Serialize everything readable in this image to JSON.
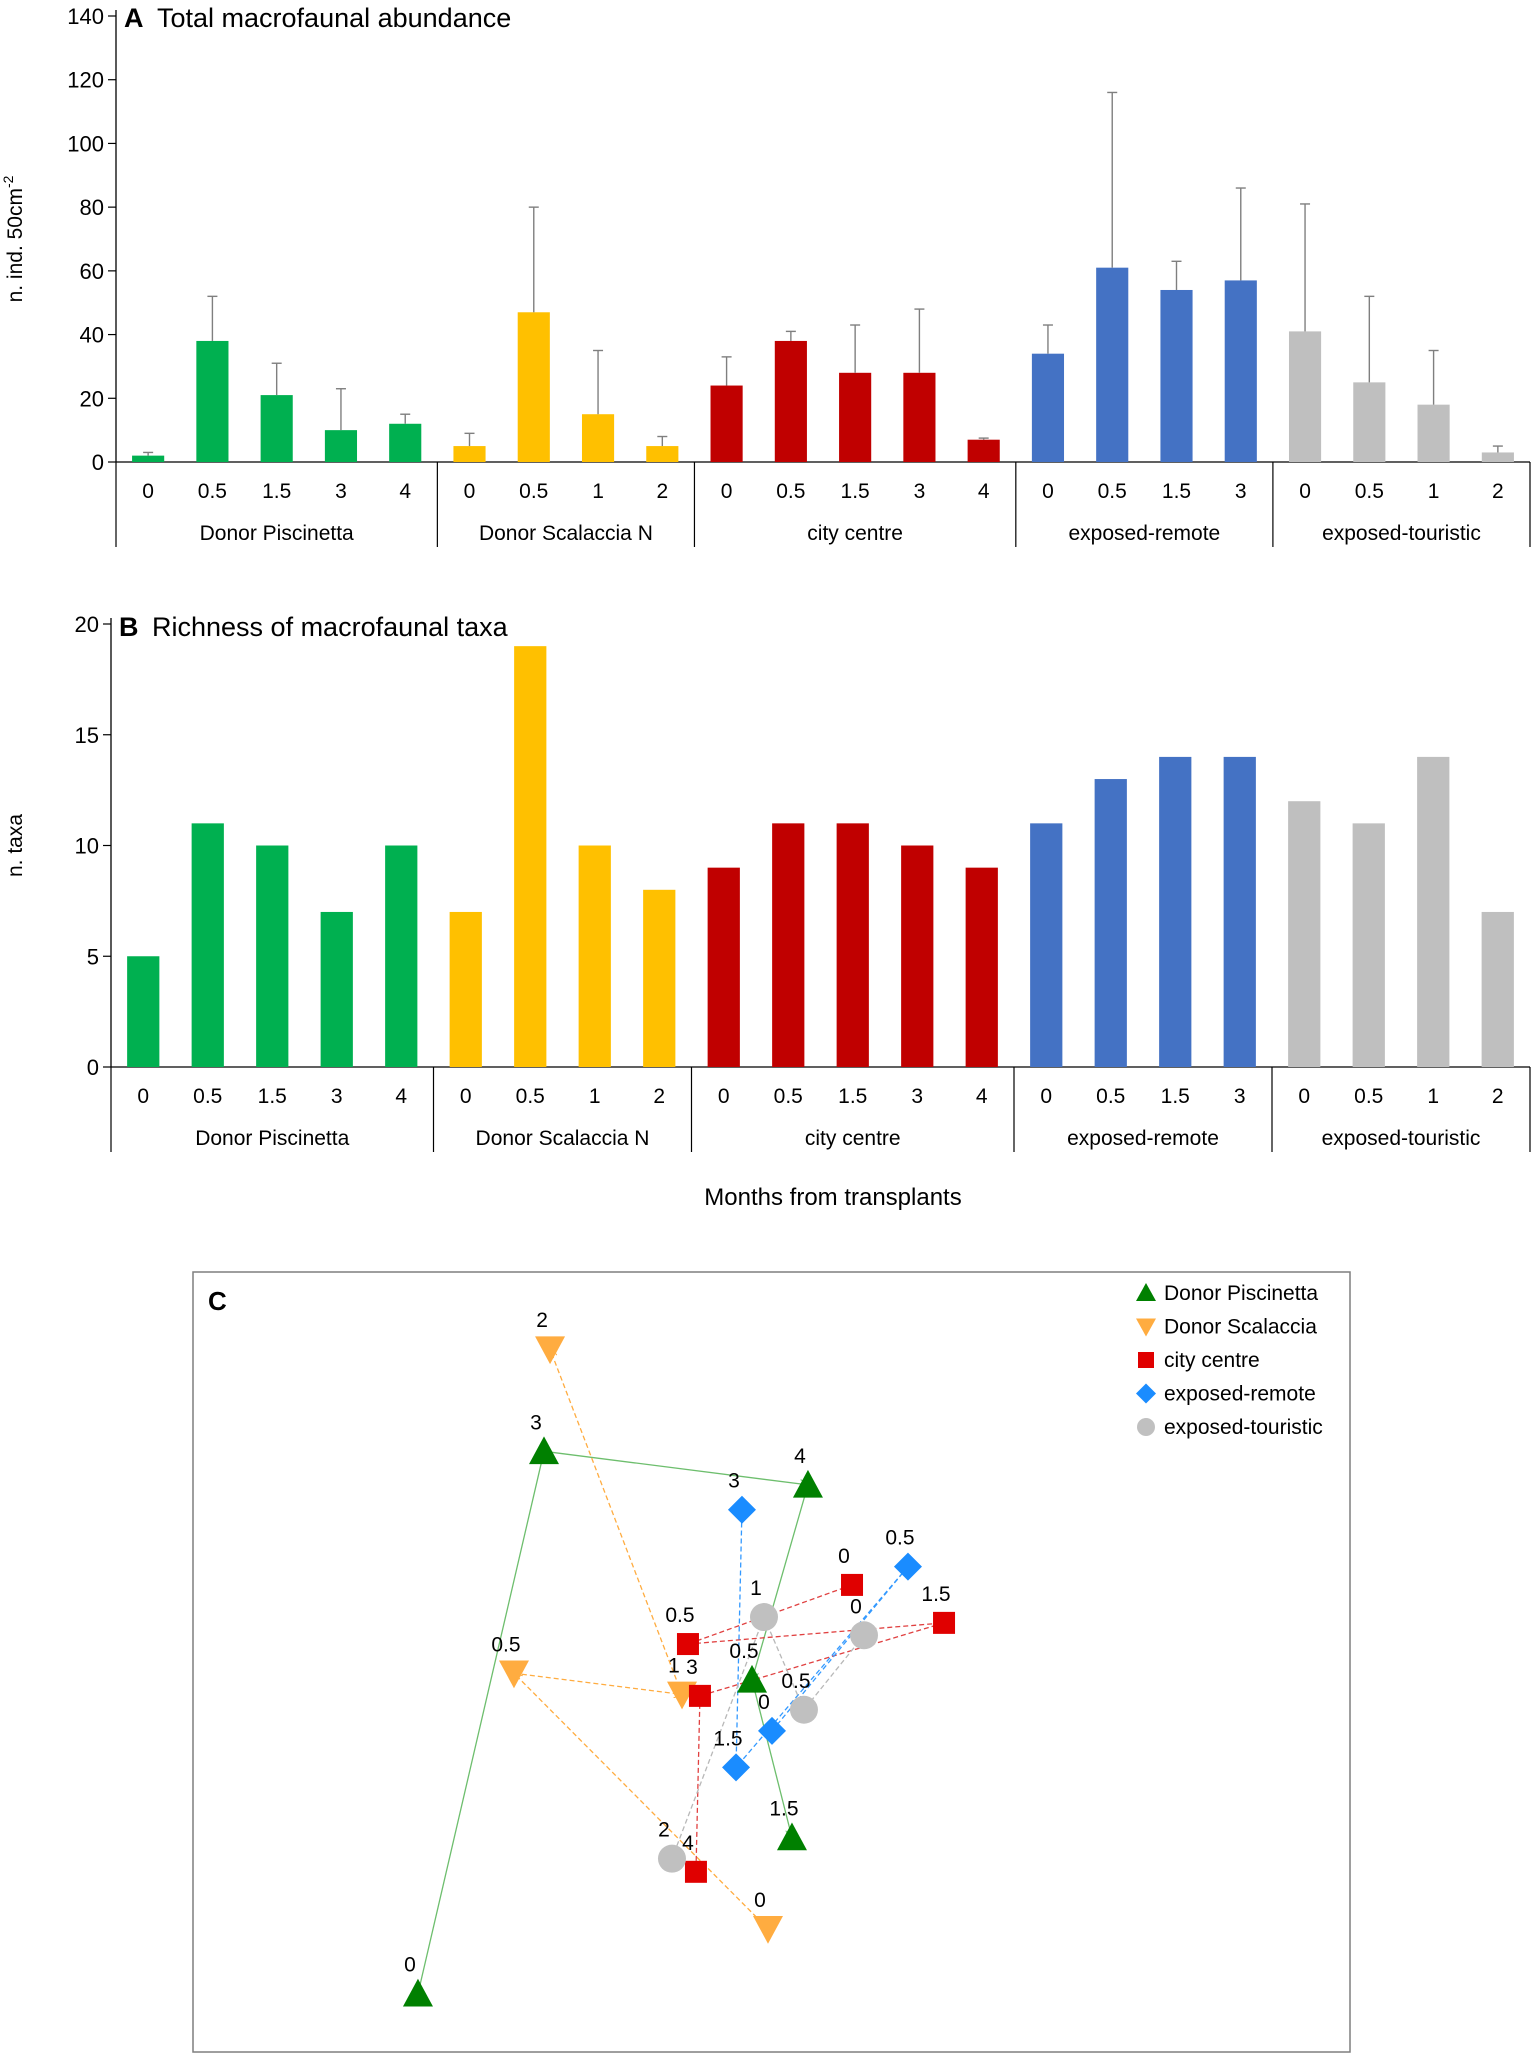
{
  "figure": {
    "x_axis_common_label": "Months from transplants"
  },
  "chart_data": [
    {
      "id": "A",
      "type": "bar",
      "panel_letter": "A",
      "title": "Total macrofaunal abundance",
      "ylabel": "n. ind. 50cm",
      "ylabel_superscript": "-2",
      "ylim": [
        0,
        140
      ],
      "yticks": [
        0,
        20,
        40,
        60,
        80,
        100,
        120,
        140
      ],
      "groups": [
        {
          "name": "Donor Piscinetta",
          "color": "#00B050",
          "categories": [
            "0",
            "0.5",
            "1.5",
            "3",
            "4"
          ],
          "values": [
            2,
            38,
            21,
            10,
            12
          ],
          "errors": [
            1,
            14,
            10,
            13,
            3
          ]
        },
        {
          "name": "Donor Scalaccia N",
          "color": "#FFC000",
          "categories": [
            "0",
            "0.5",
            "1",
            "2"
          ],
          "values": [
            5,
            47,
            15,
            5
          ],
          "errors": [
            4,
            33,
            20,
            3
          ]
        },
        {
          "name": "city centre",
          "color": "#C00000",
          "categories": [
            "0",
            "0.5",
            "1.5",
            "3",
            "4"
          ],
          "values": [
            24,
            38,
            28,
            28,
            7
          ],
          "errors": [
            9,
            3,
            15,
            20,
            0.5
          ]
        },
        {
          "name": "exposed-remote",
          "color": "#4472C4",
          "categories": [
            "0",
            "0.5",
            "1.5",
            "3"
          ],
          "values": [
            34,
            61,
            54,
            57
          ],
          "errors": [
            9,
            55,
            9,
            29
          ]
        },
        {
          "name": "exposed-touristic",
          "color": "#BFBFBF",
          "categories": [
            "0",
            "0.5",
            "1",
            "2"
          ],
          "values": [
            41,
            25,
            18,
            3
          ],
          "errors": [
            40,
            27,
            17,
            2
          ]
        }
      ]
    },
    {
      "id": "B",
      "type": "bar",
      "panel_letter": "B",
      "title": "Richness of macrofaunal taxa",
      "ylabel": "n. taxa",
      "ylim": [
        0,
        20
      ],
      "yticks": [
        0,
        5,
        10,
        15,
        20
      ],
      "groups": [
        {
          "name": "Donor Piscinetta",
          "color": "#00B050",
          "categories": [
            "0",
            "0.5",
            "1.5",
            "3",
            "4"
          ],
          "values": [
            5,
            11,
            10,
            7,
            10
          ]
        },
        {
          "name": "Donor Scalaccia N",
          "color": "#FFC000",
          "categories": [
            "0",
            "0.5",
            "1",
            "2"
          ],
          "values": [
            7,
            19,
            10,
            8
          ]
        },
        {
          "name": "city centre",
          "color": "#C00000",
          "categories": [
            "0",
            "0.5",
            "1.5",
            "3",
            "4"
          ],
          "values": [
            9,
            11,
            11,
            10,
            9
          ]
        },
        {
          "name": "exposed-remote",
          "color": "#4472C4",
          "categories": [
            "0",
            "0.5",
            "1.5",
            "3"
          ],
          "values": [
            11,
            13,
            14,
            14
          ]
        },
        {
          "name": "exposed-touristic",
          "color": "#BFBFBF",
          "categories": [
            "0",
            "0.5",
            "1",
            "2"
          ],
          "values": [
            12,
            11,
            14,
            7
          ]
        }
      ]
    },
    {
      "id": "C",
      "type": "scatter",
      "panel_letter": "C",
      "title": "",
      "xlim": [
        0,
        100
      ],
      "ylim": [
        0,
        100
      ],
      "legend_position": "top-right",
      "series": [
        {
          "name": "Donor Piscinetta",
          "marker": "triangle-up",
          "color": "#008000",
          "line_color": "#6DBE6D",
          "dashed": false,
          "order": [
            "0",
            "3",
            "4",
            "0.5",
            "1.5"
          ],
          "points": [
            {
              "label": "0",
              "x": 18.33,
              "y": 3.6
            },
            {
              "label": "3",
              "x": 30.0,
              "y": 77.9
            },
            {
              "label": "4",
              "x": 54.44,
              "y": 73.3
            },
            {
              "label": "0.5",
              "x": 49.26,
              "y": 46.6
            },
            {
              "label": "1.5",
              "x": 52.96,
              "y": 25.0
            }
          ]
        },
        {
          "name": "Donor Scalaccia",
          "marker": "triangle-down",
          "color": "#FFAC40",
          "line_color": "#FFAC40",
          "dashed": true,
          "order": [
            "0",
            "0.5",
            "1",
            "2"
          ],
          "points": [
            {
              "label": "0",
              "x": 50.74,
              "y": 12.5
            },
            {
              "label": "0.5",
              "x": 27.22,
              "y": 47.5
            },
            {
              "label": "1",
              "x": 42.78,
              "y": 44.6
            },
            {
              "label": "2",
              "x": 30.56,
              "y": 91.9
            }
          ]
        },
        {
          "name": "city centre",
          "marker": "square",
          "color": "#E00000",
          "line_color": "#E04040",
          "dashed": true,
          "order": [
            "0",
            "0.5",
            "1.5",
            "3",
            "4"
          ],
          "points": [
            {
              "label": "0",
              "x": 58.52,
              "y": 59.6
            },
            {
              "label": "0.5",
              "x": 43.33,
              "y": 51.5
            },
            {
              "label": "1.5",
              "x": 67.04,
              "y": 54.4
            },
            {
              "label": "3",
              "x": 44.44,
              "y": 44.4
            },
            {
              "label": "4",
              "x": 44.07,
              "y": 20.3
            }
          ]
        },
        {
          "name": "exposed-remote",
          "marker": "diamond",
          "color": "#1A8CFF",
          "line_color": "#3399FF",
          "dashed": true,
          "order": [
            "0",
            "0.5",
            "1.5",
            "3"
          ],
          "points": [
            {
              "label": "0",
              "x": 51.11,
              "y": 39.6
            },
            {
              "label": "0.5",
              "x": 63.7,
              "y": 62.1
            },
            {
              "label": "1.5",
              "x": 47.78,
              "y": 34.6
            },
            {
              "label": "3",
              "x": 48.33,
              "y": 69.9
            }
          ]
        },
        {
          "name": "exposed-touristic",
          "marker": "circle",
          "color": "#C0C0C0",
          "line_color": "#B8B8B8",
          "dashed": true,
          "order": [
            "0",
            "0.5",
            "1",
            "2"
          ],
          "points": [
            {
              "label": "0",
              "x": 59.63,
              "y": 52.7
            },
            {
              "label": "0.5",
              "x": 54.07,
              "y": 42.5
            },
            {
              "label": "1",
              "x": 50.37,
              "y": 55.2
            },
            {
              "label": "2",
              "x": 41.85,
              "y": 22.1
            }
          ]
        }
      ]
    }
  ]
}
